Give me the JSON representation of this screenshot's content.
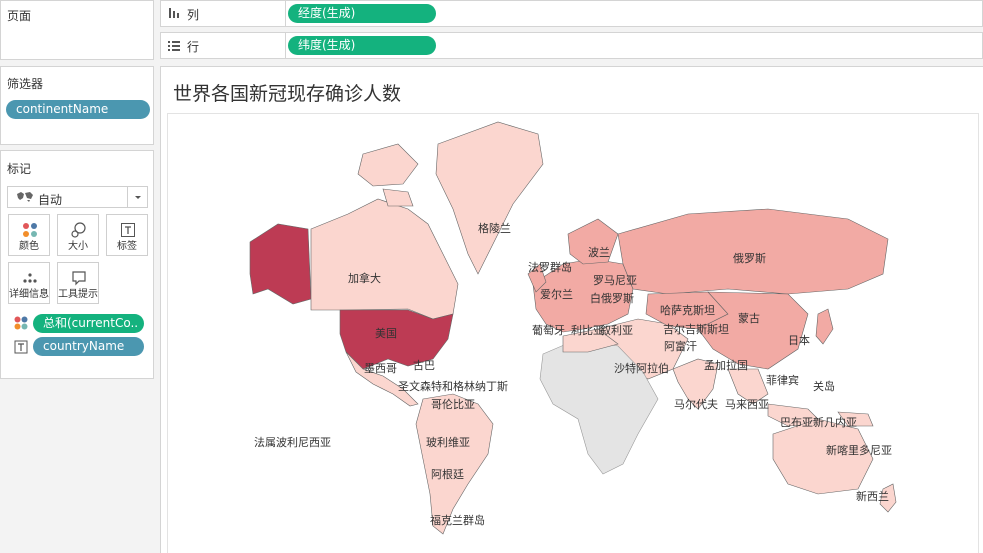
{
  "pages_panel": {
    "title": "页面"
  },
  "columns_shelf": {
    "label": "列",
    "pill": "经度(生成)"
  },
  "rows_shelf": {
    "label": "行",
    "pill": "纬度(生成)"
  },
  "filters_panel": {
    "title": "筛选器",
    "pill": "continentName"
  },
  "marks_panel": {
    "title": "标记",
    "mark_type": "自动",
    "buttons": {
      "color": "颜色",
      "size": "大小",
      "label": "标签",
      "detail": "详细信息",
      "tooltip": "工具提示"
    },
    "color_pill": "总和(currentCo..",
    "label_pill": "countryName"
  },
  "visualization": {
    "title": "世界各国新冠现存确诊人数",
    "map_labels": {
      "greenland": "格陵兰",
      "canada": "加拿大",
      "usa": "美国",
      "mexico": "墨西哥",
      "cuba": "古巴",
      "st_pierre": "圣文森特和格林纳丁斯",
      "colombia": "哥伦比亚",
      "bolivia": "玻利维亚",
      "argentina": "阿根廷",
      "falklands": "福克兰群岛",
      "french_polynesia": "法属波利尼西亚",
      "faroe": "法罗群岛",
      "ireland": "爱尔兰",
      "poland": "波兰",
      "romania": "罗马尼亚",
      "belarus": "白俄罗斯",
      "portugal": "葡萄牙",
      "libya": "利比亚",
      "syria": "叙利亚",
      "saudi": "沙特阿拉伯",
      "russia": "俄罗斯",
      "kazakhstan": "哈萨克斯坦",
      "mongolia": "蒙古",
      "kyrgyzstan": "吉尔吉斯斯坦",
      "afghanistan": "阿富汗",
      "japan": "日本",
      "bangladesh": "孟加拉国",
      "philippines": "菲律宾",
      "guam": "关岛",
      "maldives": "马尔代夫",
      "malaysia": "马来西亚",
      "png": "巴布亚新几内亚",
      "new_caledonia": "新喀里多尼亚",
      "new_zealand": "新西兰"
    },
    "colors": {
      "high": "#bd3b54",
      "mid": "#f2aaa4",
      "low": "#fbd6cf",
      "nodata": "#e4e4e4"
    }
  }
}
